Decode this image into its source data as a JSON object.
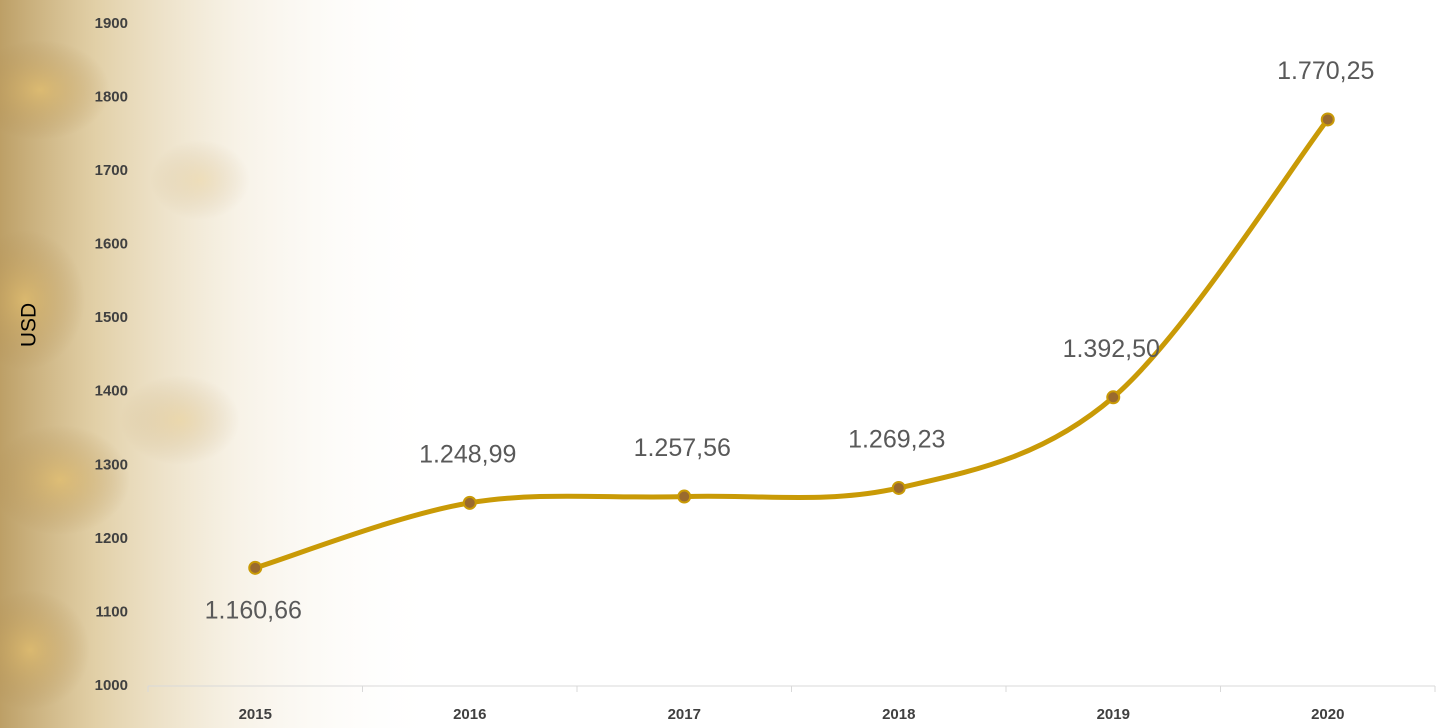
{
  "chart_data": {
    "type": "line",
    "y_label": "USD",
    "categories": [
      "2015",
      "2016",
      "2017",
      "2018",
      "2019",
      "2020"
    ],
    "values": [
      1160.66,
      1248.99,
      1257.56,
      1269.23,
      1392.5,
      1770.25
    ],
    "value_labels": [
      "1.160,66",
      "1.248,99",
      "1.257,56",
      "1.269,23",
      "1.392,50",
      "1.770,25"
    ],
    "color": "#c99a06",
    "marker_color": "#9a6a2e",
    "ylim": [
      1000,
      1900
    ],
    "yticks": [
      1000,
      1100,
      1200,
      1300,
      1400,
      1500,
      1600,
      1700,
      1800,
      1900
    ],
    "smooth": true
  }
}
